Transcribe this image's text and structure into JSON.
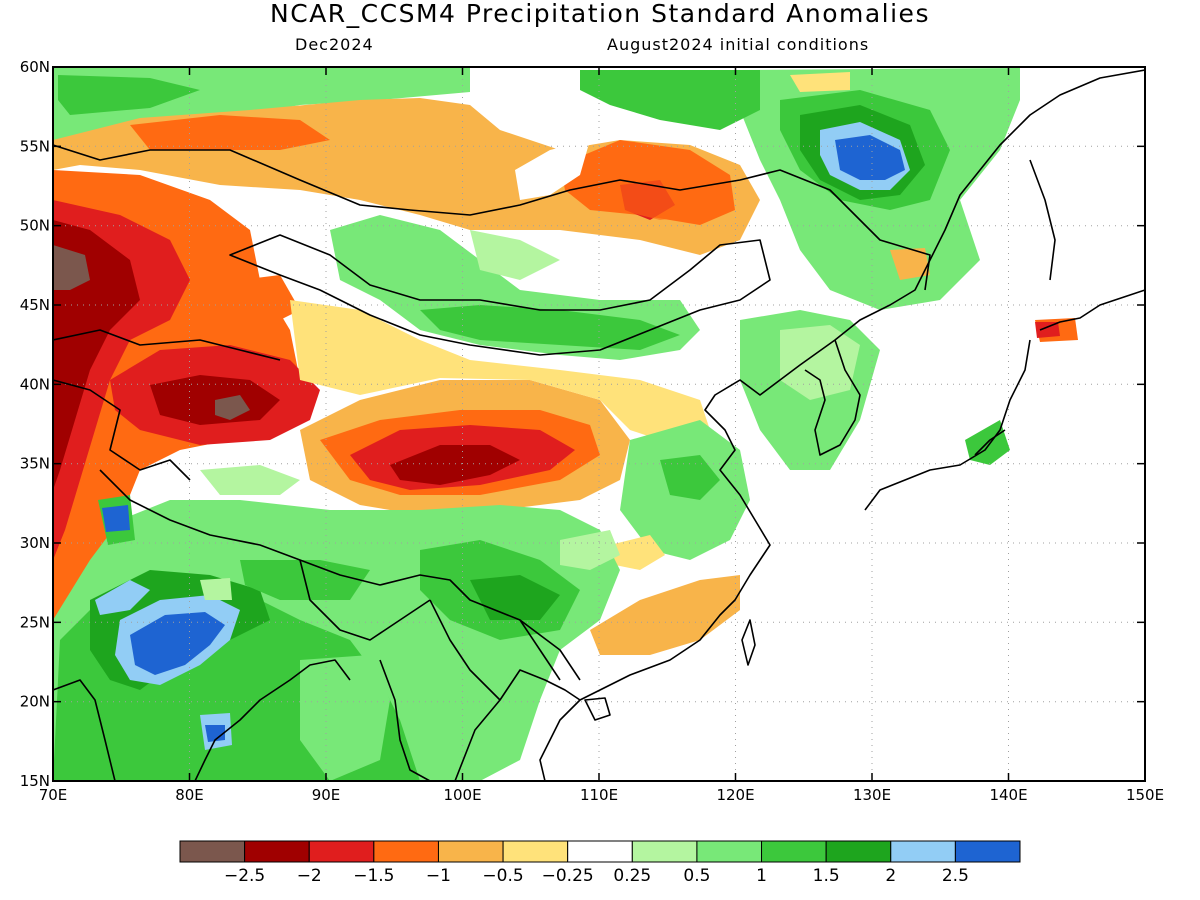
{
  "header": {
    "title": "NCAR_CCSM4 Precipitation Standard Anomalies",
    "target_month": "Dec2024",
    "init_conditions": "August2024 initial conditions"
  },
  "map": {
    "lon_range": [
      70,
      150
    ],
    "lat_range": [
      15,
      60
    ],
    "lon_ticks": [
      "70E",
      "80E",
      "90E",
      "100E",
      "110E",
      "120E",
      "130E",
      "140E",
      "150E"
    ],
    "lat_ticks": [
      "15N",
      "20N",
      "25N",
      "30N",
      "35N",
      "40N",
      "45N",
      "50N",
      "55N",
      "60N"
    ],
    "grid": "dotted"
  },
  "colorbar": {
    "colors": [
      "#7b574d",
      "#a00000",
      "#e01e1e",
      "#ff6a12",
      "#f8b44a",
      "#ffe27a",
      "#ffffff",
      "#b4f5a0",
      "#78e878",
      "#3cc83c",
      "#1ea51e",
      "#92cdf5",
      "#1e64d2"
    ],
    "labels": [
      "−2.5",
      "−2",
      "−1.5",
      "−1",
      "−0.5",
      "−0.25",
      "0.25",
      "0.5",
      "1",
      "1.5",
      "2",
      "2.5"
    ]
  }
}
